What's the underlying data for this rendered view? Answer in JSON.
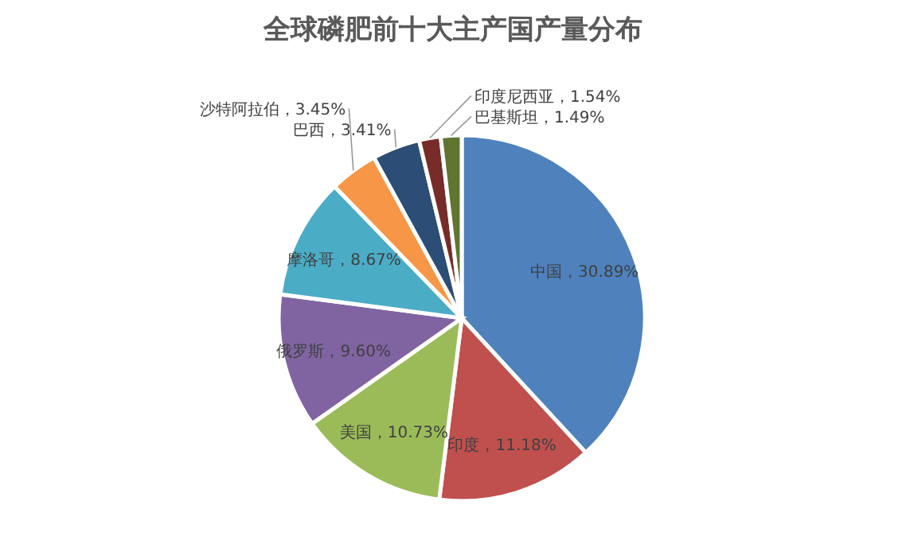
{
  "chart_data": {
    "type": "pie",
    "title": "全球磷肥前十大主产国产量分布",
    "categories": [
      "中国",
      "印度",
      "美国",
      "俄罗斯",
      "摩洛哥",
      "沙特阿拉伯",
      "巴西",
      "印度尼西亚",
      "巴基斯坦"
    ],
    "values": [
      30.89,
      11.18,
      10.73,
      9.6,
      8.67,
      3.45,
      3.41,
      1.54,
      1.49
    ],
    "colors": [
      "#4f81bd",
      "#c0504d",
      "#9bbb59",
      "#8064a2",
      "#4bacc6",
      "#f79646",
      "#2c4d75",
      "#772c2a",
      "#5f7530"
    ],
    "value_labels": [
      "，30.89%",
      "，11.18%",
      "，10.73%",
      "，9.60%",
      "，8.67%",
      "，3.45%",
      "，3.41%",
      "，1.54%",
      "，1.49%"
    ]
  }
}
